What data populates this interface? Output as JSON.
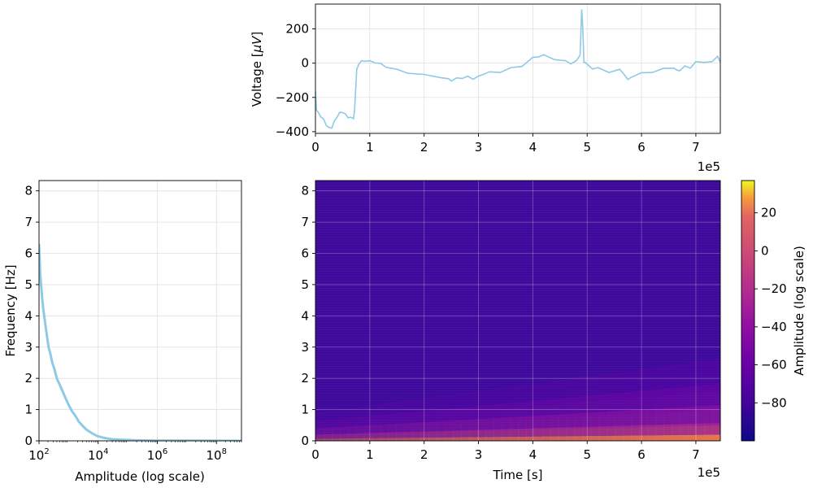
{
  "chart_data": [
    {
      "id": "voltage",
      "type": "line",
      "ylabel_prefix": "Voltage [",
      "ylabel_unit": "μV",
      "ylabel_suffix": "]",
      "xlim": [
        0,
        745000
      ],
      "ylim": [
        -410,
        345
      ],
      "x_ticks": [
        "0",
        "1",
        "2",
        "3",
        "4",
        "5",
        "6",
        "7"
      ],
      "y_ticks": [
        "200",
        "0",
        "−200",
        "−400"
      ],
      "x_offset_label": "1e5",
      "grid": true,
      "color": "#8ecae6",
      "series": [
        {
          "x": [
            0,
            2000,
            5000,
            10000,
            15000,
            20000,
            25000,
            30000,
            35000,
            40000,
            45000,
            50000,
            55000,
            60000,
            65000,
            70000,
            72000,
            74000,
            76000,
            80000,
            85000,
            90000,
            100000,
            110000,
            120000,
            130000,
            150000,
            170000,
            200000,
            230000,
            245000,
            250000,
            260000,
            270000,
            280000,
            290000,
            300000,
            310000,
            320000,
            340000,
            360000,
            380000,
            400000,
            410000,
            420000,
            440000,
            460000,
            470000,
            480000,
            487000,
            490000,
            492000,
            494000,
            496000,
            500000,
            510000,
            520000,
            540000,
            560000,
            570000,
            575000,
            580000,
            600000,
            620000,
            640000,
            660000,
            665000,
            670000,
            680000,
            690000,
            700000,
            710000,
            715000,
            720000,
            730000,
            740000,
            745000
          ],
          "y": [
            -160,
            -270,
            -290,
            -310,
            -330,
            -360,
            -380,
            -375,
            -340,
            -310,
            -290,
            -285,
            -300,
            -315,
            -320,
            -320,
            -280,
            -150,
            -40,
            0,
            10,
            15,
            10,
            5,
            -5,
            -20,
            -40,
            -55,
            -70,
            -80,
            -95,
            -100,
            -90,
            -85,
            -80,
            -90,
            -80,
            -60,
            -55,
            -50,
            -30,
            -15,
            30,
            40,
            45,
            25,
            10,
            0,
            10,
            50,
            310,
            200,
            0,
            10,
            -10,
            -30,
            -30,
            -50,
            -40,
            -70,
            -100,
            -80,
            -60,
            -50,
            -35,
            -25,
            -45,
            -40,
            -20,
            -25,
            5,
            10,
            0,
            10,
            5,
            45,
            5
          ]
        }
      ]
    },
    {
      "id": "spectrum",
      "type": "line",
      "xlabel": "Amplitude (log scale)",
      "ylabel": "Frequency [Hz]",
      "xscale": "log",
      "xlim": [
        100,
        700000000
      ],
      "ylim": [
        0,
        8.33
      ],
      "x_ticks": [
        {
          "b": "10",
          "e": "2"
        },
        {
          "b": "10",
          "e": "4"
        },
        {
          "b": "10",
          "e": "6"
        },
        {
          "b": "10",
          "e": "8"
        }
      ],
      "y_ticks": [
        "0",
        "1",
        "2",
        "3",
        "4",
        "5",
        "6",
        "7",
        "8"
      ],
      "grid": true,
      "color": "#8ecae6",
      "series": [
        {
          "amplitude": [
            100,
            105,
            110,
            120,
            130,
            140,
            155,
            170,
            190,
            210,
            240,
            280,
            330,
            400,
            500,
            650,
            800,
            1000,
            1300,
            1700,
            2200,
            3000,
            4000,
            6000,
            9000,
            15000,
            30000,
            70000,
            200000,
            1000000,
            10000000,
            100000000,
            700000000
          ],
          "frequency": [
            6.3,
            5.8,
            5.3,
            4.9,
            4.5,
            4.2,
            3.9,
            3.6,
            3.3,
            3.0,
            2.8,
            2.5,
            2.3,
            2.0,
            1.8,
            1.55,
            1.35,
            1.15,
            0.95,
            0.8,
            0.62,
            0.48,
            0.36,
            0.25,
            0.16,
            0.1,
            0.05,
            0.03,
            0.015,
            0.008,
            0.004,
            0.002,
            0.001
          ]
        }
      ]
    },
    {
      "id": "spectrogram",
      "type": "heatmap",
      "xlabel": "Time [s]",
      "xlim": [
        0,
        745000
      ],
      "ylim": [
        0,
        8.33
      ],
      "x_ticks": [
        "0",
        "1",
        "2",
        "3",
        "4",
        "5",
        "6",
        "7"
      ],
      "y_ticks": [
        "0",
        "1",
        "2",
        "3",
        "4",
        "5",
        "6",
        "7",
        "8"
      ],
      "x_offset_label": "1e5",
      "grid": true,
      "colormap": "plasma",
      "vmin": -100,
      "vmax": 37
    },
    {
      "id": "colorbar",
      "type": "colorbar",
      "label": "Amplitude (log scale)",
      "ticks": [
        20,
        0,
        -20,
        -40,
        -60,
        -80
      ],
      "tick_labels": [
        "20",
        "0",
        "−20",
        "−40",
        "−60",
        "−80"
      ],
      "range": [
        -100,
        37
      ]
    }
  ]
}
